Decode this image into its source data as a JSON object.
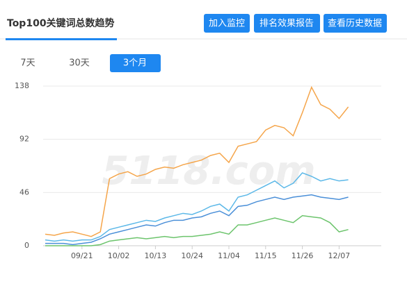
{
  "header": {
    "title": "Top100关键词总数趋势",
    "buttons": [
      "加入监控",
      "排名效果报告",
      "查看历史数据"
    ]
  },
  "tabs": {
    "items": [
      "7天",
      "30天",
      "3个月"
    ],
    "active": 2
  },
  "watermark": "5118.com",
  "chart_data": {
    "type": "line",
    "categories": [
      null,
      null,
      null,
      null,
      "09/21",
      null,
      null,
      null,
      "10/02",
      null,
      null,
      null,
      "10/13",
      null,
      null,
      null,
      "10/24",
      null,
      null,
      null,
      "11/04",
      null,
      null,
      null,
      "11/15",
      null,
      null,
      null,
      "11/26",
      null,
      null,
      null,
      "12/07",
      null
    ],
    "series": [
      {
        "color": "#f5a54a",
        "values": [
          10,
          9,
          11,
          12,
          10,
          8,
          12,
          58,
          62,
          64,
          60,
          62,
          66,
          68,
          67,
          70,
          72,
          74,
          78,
          80,
          72,
          86,
          88,
          90,
          100,
          104,
          102,
          95,
          115,
          137,
          122,
          118,
          110,
          120
        ]
      },
      {
        "color": "#5bb8e8",
        "values": [
          5,
          4,
          5,
          4,
          5,
          5,
          8,
          14,
          16,
          18,
          20,
          22,
          21,
          24,
          26,
          28,
          27,
          30,
          34,
          36,
          30,
          42,
          44,
          48,
          52,
          56,
          50,
          54,
          63,
          60,
          56,
          58,
          56,
          57
        ]
      },
      {
        "color": "#4a8fd8",
        "values": [
          2,
          2,
          2,
          1,
          2,
          3,
          6,
          10,
          12,
          14,
          16,
          18,
          17,
          20,
          22,
          22,
          24,
          25,
          28,
          30,
          26,
          34,
          35,
          38,
          40,
          42,
          40,
          42,
          43,
          44,
          42,
          41,
          40,
          42
        ]
      },
      {
        "color": "#6cc46c",
        "values": [
          0,
          0,
          0,
          0,
          0,
          0,
          1,
          4,
          5,
          6,
          7,
          6,
          7,
          8,
          7,
          8,
          8,
          9,
          10,
          12,
          10,
          18,
          18,
          20,
          22,
          24,
          22,
          20,
          26,
          25,
          24,
          20,
          12,
          14
        ]
      }
    ],
    "ylim": [
      0,
      141
    ],
    "yticks": [
      0,
      46,
      92,
      138
    ],
    "grid": true
  }
}
